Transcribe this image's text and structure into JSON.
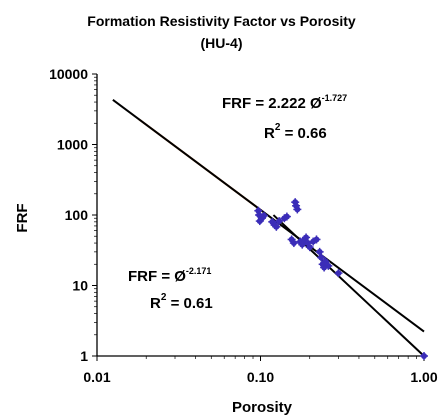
{
  "chart_data": {
    "type": "scatter",
    "title": "Formation Resistivity Factor vs Porosity",
    "subtitle": "(HU-4)",
    "xlabel": "Porosity",
    "ylabel": "FRF",
    "x_scale": "log",
    "y_scale": "log",
    "xlim": [
      0.01,
      1.0
    ],
    "ylim": [
      1,
      10000
    ],
    "x_ticks": [
      "0.01",
      "0.10",
      "1.00"
    ],
    "y_ticks": [
      "1",
      "10",
      "100",
      "1000",
      "10000"
    ],
    "grid": false,
    "legend": "none",
    "series": [
      {
        "kind": "points",
        "marker_color": "#3b2db8",
        "points": [
          [
            0.097,
            115
          ],
          [
            0.098,
            100
          ],
          [
            0.099,
            82
          ],
          [
            0.102,
            90
          ],
          [
            0.105,
            98
          ],
          [
            0.118,
            80
          ],
          [
            0.122,
            72
          ],
          [
            0.125,
            68
          ],
          [
            0.13,
            82
          ],
          [
            0.14,
            90
          ],
          [
            0.145,
            95
          ],
          [
            0.155,
            45
          ],
          [
            0.16,
            40
          ],
          [
            0.163,
            152
          ],
          [
            0.165,
            135
          ],
          [
            0.168,
            120
          ],
          [
            0.175,
            42
          ],
          [
            0.18,
            38
          ],
          [
            0.185,
            45
          ],
          [
            0.19,
            48
          ],
          [
            0.195,
            40
          ],
          [
            0.2,
            35
          ],
          [
            0.21,
            42
          ],
          [
            0.22,
            45
          ],
          [
            0.23,
            30
          ],
          [
            0.235,
            25
          ],
          [
            0.24,
            20
          ],
          [
            0.245,
            18
          ],
          [
            0.25,
            22
          ],
          [
            0.26,
            19
          ],
          [
            0.3,
            15
          ],
          [
            1.0,
            1
          ]
        ]
      },
      {
        "kind": "line",
        "color": "#e87722",
        "x_range": [
          0.018,
          0.105
        ],
        "coefficient": 2.222,
        "exponent": -1.727
      },
      {
        "kind": "line",
        "color": "#000000",
        "x_range": [
          0.0125,
          1.0
        ],
        "coefficient": 2.222,
        "exponent": -1.727
      },
      {
        "kind": "line",
        "color": "#000000",
        "x_range": [
          0.12,
          1.0
        ],
        "coefficient": 1.0,
        "exponent": -2.171
      }
    ],
    "annotations": {
      "fit1": {
        "text": "FRF = 2.222 Ø",
        "exponent": "-1.727",
        "r2_label": "R",
        "r2_value": " = 0.66"
      },
      "fit2": {
        "text": "FRF =  Ø",
        "exponent": "-2.171",
        "r2_label": "R",
        "r2_value": " = 0.61"
      }
    }
  }
}
